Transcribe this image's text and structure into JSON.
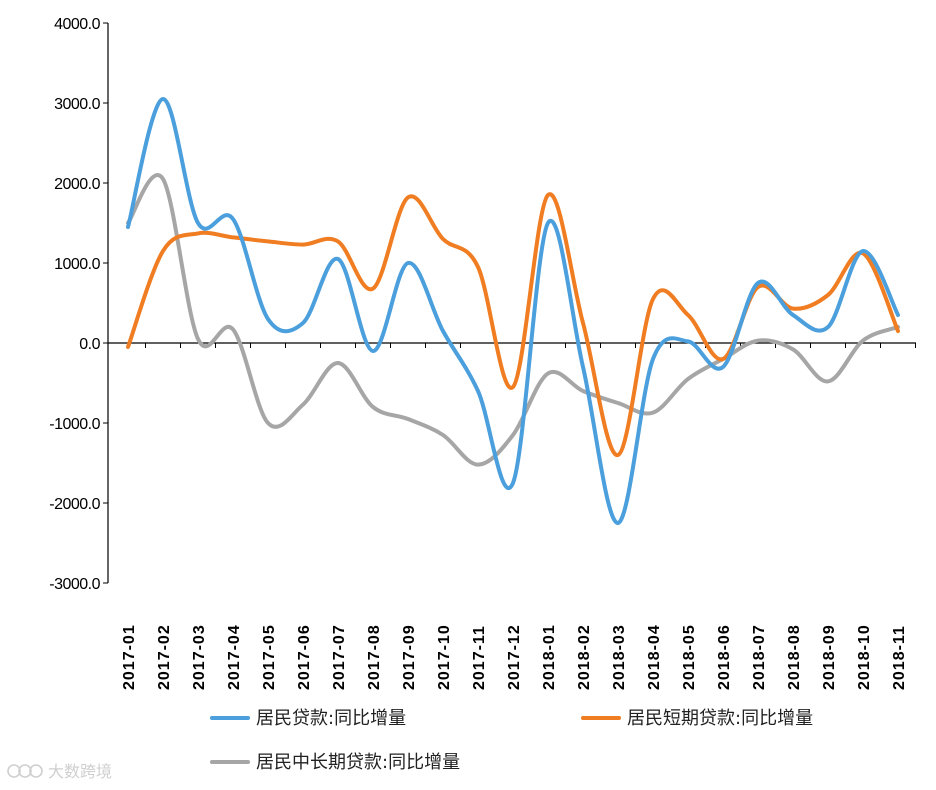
{
  "chart_data": {
    "type": "line",
    "title": "",
    "xlabel": "",
    "ylabel": "",
    "categories": [
      "2017-01",
      "2017-02",
      "2017-03",
      "2017-04",
      "2017-05",
      "2017-06",
      "2017-07",
      "2017-08",
      "2017-09",
      "2017-10",
      "2017-11",
      "2017-12",
      "2018-01",
      "2018-02",
      "2018-03",
      "2018-04",
      "2018-05",
      "2018-06",
      "2018-07",
      "2018-08",
      "2018-09",
      "2018-10",
      "2018-11"
    ],
    "ylim": [
      -3000,
      4000
    ],
    "yticks": [
      -3000,
      -2000,
      -1000,
      0,
      1000,
      2000,
      3000,
      4000
    ],
    "ytick_labels": [
      "-3000.0",
      "-2000.0",
      "-1000.0",
      "0.0",
      "1000.0",
      "2000.0",
      "3000.0",
      "4000.0"
    ],
    "grid": false,
    "legend_position": "bottom",
    "series": [
      {
        "name": "居民贷款:同比增量",
        "color": "#4a9fdc",
        "values": [
          1450,
          3050,
          1500,
          1550,
          300,
          250,
          1050,
          -100,
          1000,
          150,
          -600,
          -1750,
          1500,
          -300,
          -2250,
          -200,
          20,
          -300,
          750,
          350,
          200,
          1150,
          350
        ]
      },
      {
        "name": "居民短期贷款:同比增量",
        "color": "#f07d22",
        "values": [
          -50,
          1150,
          1370,
          1320,
          1270,
          1230,
          1270,
          680,
          1820,
          1300,
          950,
          -550,
          1850,
          250,
          -1400,
          550,
          350,
          -200,
          700,
          430,
          600,
          1120,
          150
        ]
      },
      {
        "name": "居民中长期贷款:同比增量",
        "color": "#a6a6a6",
        "values": [
          1500,
          2050,
          50,
          170,
          -1000,
          -770,
          -250,
          -800,
          -950,
          -1150,
          -1520,
          -1150,
          -380,
          -600,
          -750,
          -870,
          -450,
          -200,
          30,
          -80,
          -480,
          30,
          200
        ]
      }
    ]
  },
  "watermark": {
    "text": "大数跨境",
    "icon": "watermark-logo-icon"
  }
}
